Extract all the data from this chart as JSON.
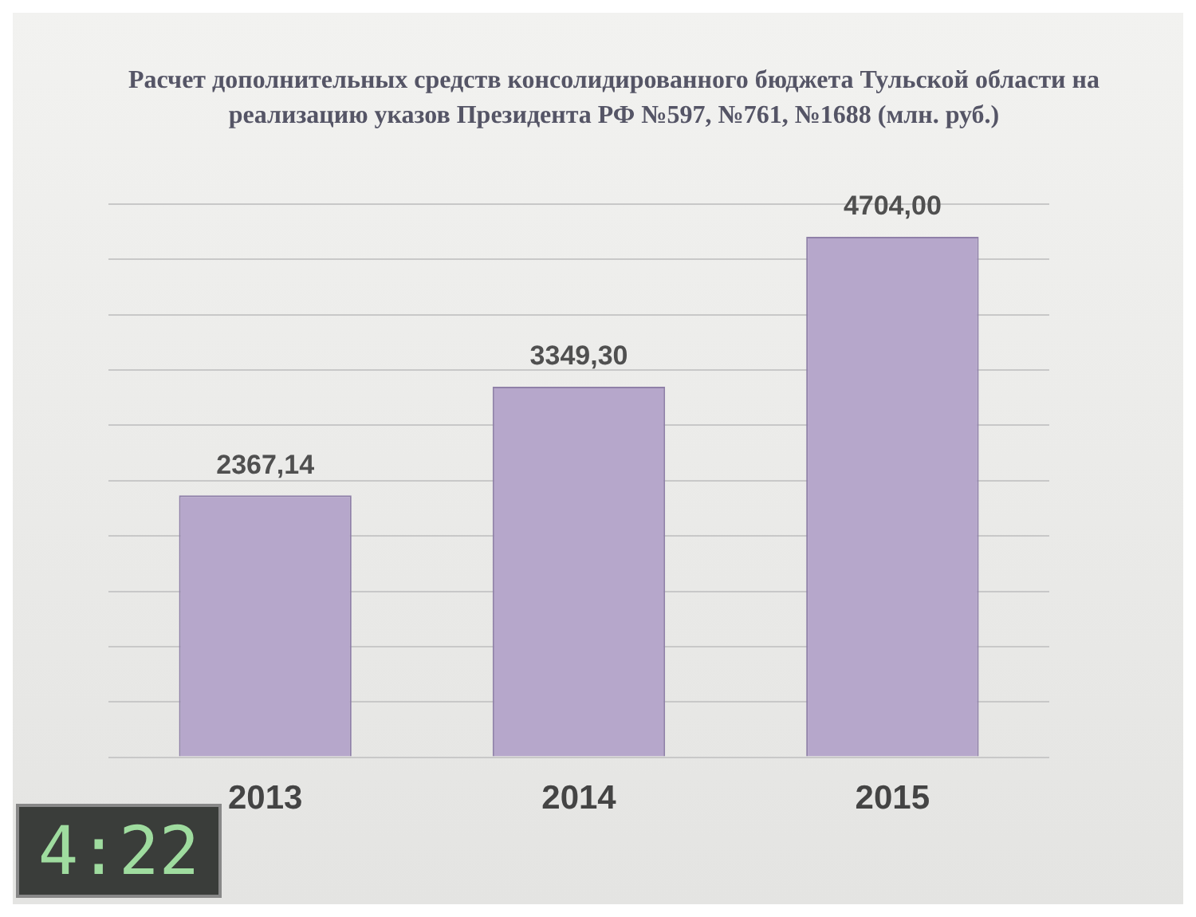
{
  "chart_data": {
    "type": "bar",
    "title": "Расчет дополнительных средств консолидированного бюджета Тульской области на реализацию указов Президента РФ №597, №761, №1688 (млн. руб.)",
    "categories": [
      "2013",
      "2014",
      "2015"
    ],
    "values": [
      2367.14,
      3349.3,
      4704.0
    ],
    "value_labels": [
      "2367,14",
      "3349,30",
      "4704,00"
    ],
    "color": "#b6a7cb",
    "ylim": [
      0,
      5000
    ],
    "yticks": [
      {
        "value": 0,
        "label": null
      },
      {
        "value": 500,
        "label": null
      },
      {
        "value": 1000,
        "label": null
      },
      {
        "value": 1500,
        "label": null
      },
      {
        "value": 2000,
        "label": null
      },
      {
        "value": 2500,
        "label": null
      },
      {
        "value": 3000,
        "label": null
      },
      {
        "value": 3500,
        "label": null
      },
      {
        "value": 4000,
        "label": null
      },
      {
        "value": 4500,
        "label": null
      },
      {
        "value": 5000,
        "label": null
      }
    ],
    "tick_labels": "x",
    "grid": "y",
    "annotations": [
      "4:22"
    ]
  }
}
